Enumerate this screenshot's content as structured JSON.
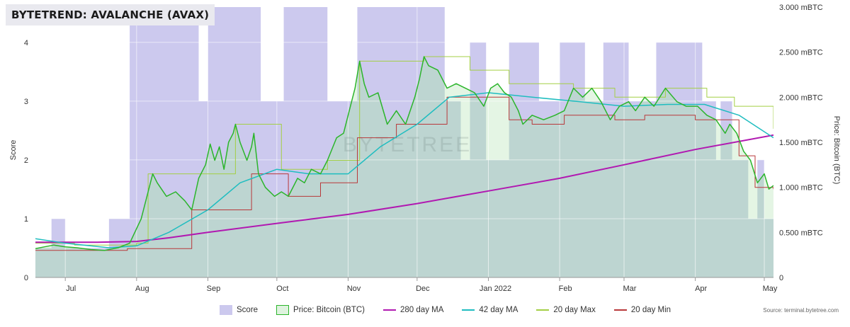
{
  "title": "BYTETREND: AVALANCHE (AVAX)",
  "watermark": "BYTETREE",
  "source": "Source: terminal.bytetree.com",
  "legend": [
    {
      "label": "Score",
      "swatch": "box",
      "color": "#ccc9ee"
    },
    {
      "label": "Price: Bitcoin (BTC)",
      "swatch": "box",
      "color": "#dff3df",
      "border": "#2bb52b"
    },
    {
      "label": "280 day MA",
      "swatch": "line",
      "color": "#b119b1"
    },
    {
      "label": "42 day MA",
      "swatch": "line",
      "color": "#1fbdc0"
    },
    {
      "label": "20 day Max",
      "swatch": "line",
      "color": "#a3cf45"
    },
    {
      "label": "20 day Min",
      "swatch": "line",
      "color": "#b8383a"
    }
  ],
  "chart_data": {
    "type": "line",
    "x_ticks": [
      "Jul",
      "Aug",
      "Sep",
      "Oct",
      "Nov",
      "Dec",
      "Jan 2022",
      "Feb",
      "Mar",
      "Apr",
      "May"
    ],
    "x_range": [
      "2021-06-18",
      "2022-05-05"
    ],
    "y_left": {
      "label": "Score",
      "ticks": [
        "0",
        "1",
        "2",
        "3",
        "4"
      ],
      "range": [
        0,
        4.6
      ]
    },
    "y_right": {
      "label": "Price: Bitcoin (BTC)",
      "ticks": [
        "0",
        "0.500 mBTC",
        "1.000 mBTC",
        "1.500 mBTC",
        "2.000 mBTC",
        "2.500 mBTC",
        "3.000 mBTC"
      ],
      "range": [
        0,
        3.0
      ]
    },
    "colors": {
      "score": "#ccc9ee",
      "price_fill": "#dff3df",
      "price_line": "#2bb52b",
      "ma280": "#b119b1",
      "ma42": "#1fbdc0",
      "max20": "#a3cf45",
      "min20": "#b8383a",
      "overlap": "#b9d2cf"
    },
    "series": [
      {
        "name": "Score",
        "kind": "step-area",
        "points": [
          [
            "2021-06-18",
            0.5
          ],
          [
            "2021-06-24",
            0.5
          ],
          [
            "2021-06-25",
            1
          ],
          [
            "2021-07-01",
            0.5
          ],
          [
            "2021-07-20",
            1
          ],
          [
            "2021-07-29",
            4.6
          ],
          [
            "2021-08-28",
            3
          ],
          [
            "2021-09-01",
            4.6
          ],
          [
            "2021-09-24",
            3
          ],
          [
            "2021-10-04",
            4.6
          ],
          [
            "2021-10-23",
            3
          ],
          [
            "2021-11-05",
            4.6
          ],
          [
            "2021-12-13",
            3
          ],
          [
            "2021-12-20",
            2
          ],
          [
            "2021-12-24",
            4
          ],
          [
            "2021-12-31",
            2
          ],
          [
            "2022-01-10",
            4
          ],
          [
            "2022-01-23",
            3
          ],
          [
            "2022-02-01",
            4
          ],
          [
            "2022-02-12",
            3
          ],
          [
            "2022-02-20",
            4
          ],
          [
            "2022-03-03",
            3
          ],
          [
            "2022-03-15",
            4
          ],
          [
            "2022-04-04",
            3
          ],
          [
            "2022-04-10",
            2
          ],
          [
            "2022-04-12",
            3
          ],
          [
            "2022-04-17",
            2
          ],
          [
            "2022-04-24",
            1
          ],
          [
            "2022-04-28",
            2
          ],
          [
            "2022-05-01",
            1
          ],
          [
            "2022-05-05",
            1
          ]
        ]
      },
      {
        "name": "Price: Bitcoin (BTC)",
        "kind": "area-line",
        "points": [
          [
            "2021-06-18",
            0.32
          ],
          [
            "2021-06-22",
            0.34
          ],
          [
            "2021-06-26",
            0.36
          ],
          [
            "2021-07-01",
            0.34
          ],
          [
            "2021-07-06",
            0.33
          ],
          [
            "2021-07-12",
            0.31
          ],
          [
            "2021-07-18",
            0.3
          ],
          [
            "2021-07-24",
            0.33
          ],
          [
            "2021-07-29",
            0.38
          ],
          [
            "2021-08-03",
            0.65
          ],
          [
            "2021-08-06",
            0.95
          ],
          [
            "2021-08-08",
            1.15
          ],
          [
            "2021-08-10",
            1.05
          ],
          [
            "2021-08-14",
            0.9
          ],
          [
            "2021-08-18",
            0.95
          ],
          [
            "2021-08-22",
            0.85
          ],
          [
            "2021-08-25",
            0.75
          ],
          [
            "2021-08-28",
            1.1
          ],
          [
            "2021-08-31",
            1.25
          ],
          [
            "2021-09-02",
            1.48
          ],
          [
            "2021-09-04",
            1.3
          ],
          [
            "2021-09-06",
            1.45
          ],
          [
            "2021-09-08",
            1.2
          ],
          [
            "2021-09-10",
            1.5
          ],
          [
            "2021-09-12",
            1.6
          ],
          [
            "2021-09-13",
            1.7
          ],
          [
            "2021-09-15",
            1.5
          ],
          [
            "2021-09-18",
            1.3
          ],
          [
            "2021-09-20",
            1.45
          ],
          [
            "2021-09-21",
            1.6
          ],
          [
            "2021-09-23",
            1.15
          ],
          [
            "2021-09-26",
            1.0
          ],
          [
            "2021-09-30",
            0.9
          ],
          [
            "2021-10-03",
            0.95
          ],
          [
            "2021-10-06",
            0.9
          ],
          [
            "2021-10-10",
            1.1
          ],
          [
            "2021-10-13",
            1.05
          ],
          [
            "2021-10-16",
            1.2
          ],
          [
            "2021-10-20",
            1.15
          ],
          [
            "2021-10-23",
            1.3
          ],
          [
            "2021-10-27",
            1.55
          ],
          [
            "2021-10-30",
            1.6
          ],
          [
            "2021-11-02",
            1.9
          ],
          [
            "2021-11-04",
            2.1
          ],
          [
            "2021-11-06",
            2.4
          ],
          [
            "2021-11-08",
            2.15
          ],
          [
            "2021-11-10",
            2.0
          ],
          [
            "2021-11-14",
            2.05
          ],
          [
            "2021-11-18",
            1.7
          ],
          [
            "2021-11-22",
            1.85
          ],
          [
            "2021-11-26",
            1.7
          ],
          [
            "2021-11-30",
            2.0
          ],
          [
            "2021-12-02",
            2.2
          ],
          [
            "2021-12-04",
            2.45
          ],
          [
            "2021-12-06",
            2.35
          ],
          [
            "2021-12-10",
            2.3
          ],
          [
            "2021-12-14",
            2.1
          ],
          [
            "2021-12-18",
            2.15
          ],
          [
            "2021-12-22",
            2.1
          ],
          [
            "2021-12-26",
            2.05
          ],
          [
            "2021-12-30",
            1.9
          ],
          [
            "2022-01-02",
            2.1
          ],
          [
            "2022-01-05",
            2.15
          ],
          [
            "2022-01-08",
            2.05
          ],
          [
            "2022-01-11",
            2.0
          ],
          [
            "2022-01-14",
            1.85
          ],
          [
            "2022-01-16",
            1.7
          ],
          [
            "2022-01-20",
            1.8
          ],
          [
            "2022-01-25",
            1.75
          ],
          [
            "2022-01-30",
            1.8
          ],
          [
            "2022-02-03",
            1.85
          ],
          [
            "2022-02-07",
            2.1
          ],
          [
            "2022-02-11",
            2.0
          ],
          [
            "2022-02-15",
            2.1
          ],
          [
            "2022-02-19",
            1.95
          ],
          [
            "2022-02-23",
            1.75
          ],
          [
            "2022-02-27",
            1.9
          ],
          [
            "2022-03-03",
            1.95
          ],
          [
            "2022-03-06",
            1.85
          ],
          [
            "2022-03-10",
            2.0
          ],
          [
            "2022-03-14",
            1.9
          ],
          [
            "2022-03-19",
            2.1
          ],
          [
            "2022-03-24",
            1.95
          ],
          [
            "2022-03-28",
            1.9
          ],
          [
            "2022-04-02",
            1.9
          ],
          [
            "2022-04-06",
            1.8
          ],
          [
            "2022-04-10",
            1.75
          ],
          [
            "2022-04-14",
            1.6
          ],
          [
            "2022-04-16",
            1.7
          ],
          [
            "2022-04-19",
            1.6
          ],
          [
            "2022-04-22",
            1.4
          ],
          [
            "2022-04-25",
            1.3
          ],
          [
            "2022-04-28",
            1.05
          ],
          [
            "2022-05-01",
            1.15
          ],
          [
            "2022-05-03",
            0.98
          ],
          [
            "2022-05-05",
            1.02
          ]
        ]
      },
      {
        "name": "280 day MA",
        "kind": "line",
        "points": [
          [
            "2021-06-18",
            0.39
          ],
          [
            "2021-07-15",
            0.39
          ],
          [
            "2021-08-01",
            0.4
          ],
          [
            "2021-08-15",
            0.44
          ],
          [
            "2021-09-01",
            0.5
          ],
          [
            "2021-10-01",
            0.6
          ],
          [
            "2021-11-01",
            0.7
          ],
          [
            "2021-12-01",
            0.82
          ],
          [
            "2022-01-01",
            0.96
          ],
          [
            "2022-02-01",
            1.1
          ],
          [
            "2022-03-01",
            1.25
          ],
          [
            "2022-04-01",
            1.42
          ],
          [
            "2022-05-05",
            1.58
          ]
        ]
      },
      {
        "name": "42 day MA",
        "kind": "line",
        "points": [
          [
            "2021-06-18",
            0.43
          ],
          [
            "2021-07-01",
            0.38
          ],
          [
            "2021-07-20",
            0.33
          ],
          [
            "2021-08-01",
            0.35
          ],
          [
            "2021-08-15",
            0.5
          ],
          [
            "2021-09-01",
            0.75
          ],
          [
            "2021-09-15",
            1.05
          ],
          [
            "2021-10-01",
            1.2
          ],
          [
            "2021-10-15",
            1.15
          ],
          [
            "2021-11-01",
            1.15
          ],
          [
            "2021-11-15",
            1.45
          ],
          [
            "2021-12-01",
            1.7
          ],
          [
            "2021-12-15",
            2.0
          ],
          [
            "2022-01-01",
            2.05
          ],
          [
            "2022-01-20",
            2.0
          ],
          [
            "2022-02-10",
            1.95
          ],
          [
            "2022-03-01",
            1.9
          ],
          [
            "2022-03-20",
            1.92
          ],
          [
            "2022-04-05",
            1.92
          ],
          [
            "2022-04-20",
            1.8
          ],
          [
            "2022-05-05",
            1.55
          ]
        ]
      },
      {
        "name": "20 day Max",
        "kind": "step",
        "points": [
          [
            "2021-06-18",
            0.38
          ],
          [
            "2021-07-05",
            0.36
          ],
          [
            "2021-08-01",
            0.38
          ],
          [
            "2021-08-06",
            1.15
          ],
          [
            "2021-09-13",
            1.7
          ],
          [
            "2021-10-03",
            1.2
          ],
          [
            "2021-10-23",
            1.3
          ],
          [
            "2021-11-06",
            2.4
          ],
          [
            "2021-12-04",
            2.45
          ],
          [
            "2021-12-24",
            2.3
          ],
          [
            "2022-01-10",
            2.15
          ],
          [
            "2022-02-07",
            2.1
          ],
          [
            "2022-02-25",
            2.0
          ],
          [
            "2022-03-19",
            2.1
          ],
          [
            "2022-04-06",
            2.0
          ],
          [
            "2022-04-18",
            1.9
          ],
          [
            "2022-05-05",
            1.65
          ]
        ]
      },
      {
        "name": "20 day Min",
        "kind": "step",
        "points": [
          [
            "2021-06-18",
            0.3
          ],
          [
            "2021-07-12",
            0.3
          ],
          [
            "2021-07-28",
            0.32
          ],
          [
            "2021-08-25",
            0.75
          ],
          [
            "2021-09-20",
            1.15
          ],
          [
            "2021-10-06",
            0.9
          ],
          [
            "2021-10-20",
            1.05
          ],
          [
            "2021-11-05",
            1.55
          ],
          [
            "2021-11-22",
            1.7
          ],
          [
            "2021-12-14",
            2.0
          ],
          [
            "2022-01-10",
            1.75
          ],
          [
            "2022-01-20",
            1.7
          ],
          [
            "2022-02-03",
            1.8
          ],
          [
            "2022-02-25",
            1.75
          ],
          [
            "2022-03-10",
            1.8
          ],
          [
            "2022-04-01",
            1.75
          ],
          [
            "2022-04-20",
            1.35
          ],
          [
            "2022-04-27",
            1.0
          ],
          [
            "2022-05-05",
            0.98
          ]
        ]
      }
    ]
  }
}
